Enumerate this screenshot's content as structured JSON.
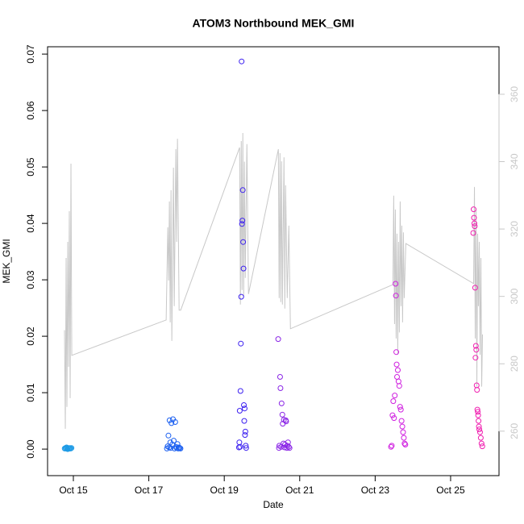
{
  "chart_data": {
    "type": "scatter",
    "title": "ATOM3 Northbound MEK_GMI",
    "x_label": "Date",
    "y_label": "MEK_GMI",
    "xlim": [
      14.316,
      26.283
    ],
    "ylim": [
      -0.0047,
      0.0713
    ],
    "y2lim": [
      246.8,
      374.1
    ],
    "xticks": [
      {
        "value": 15,
        "label": "Oct 15"
      },
      {
        "value": 17,
        "label": "Oct 17"
      },
      {
        "value": 19,
        "label": "Oct 19"
      },
      {
        "value": 21,
        "label": "Oct 21"
      },
      {
        "value": 23,
        "label": "Oct 23"
      },
      {
        "value": 25,
        "label": "Oct 25"
      }
    ],
    "yticks": [
      {
        "value": 0,
        "label": "0.00"
      },
      {
        "value": 0.01,
        "label": "0.01"
      },
      {
        "value": 0.02,
        "label": "0.02"
      },
      {
        "value": 0.03,
        "label": "0.03"
      },
      {
        "value": 0.04,
        "label": "0.04"
      },
      {
        "value": 0.05,
        "label": "0.05"
      },
      {
        "value": 0.06,
        "label": "0.06"
      },
      {
        "value": 0.07,
        "label": "0.07"
      }
    ],
    "y2ticks": [
      260,
      280,
      300,
      320,
      340,
      360
    ],
    "y2_color": "#c8c8c8",
    "grid": false,
    "series": [
      {
        "type": "line",
        "axis": "y2",
        "color": "#c8c8c8",
        "x": [
          14.765,
          14.787,
          14.808,
          14.829,
          14.851,
          14.872,
          14.893,
          14.915,
          14.936,
          14.958,
          17.46,
          17.503,
          17.525,
          17.546,
          17.567,
          17.589,
          17.61,
          17.653,
          17.674,
          17.717,
          17.738,
          17.76,
          17.803,
          17.845,
          19.407,
          19.428,
          19.45,
          19.471,
          19.492,
          19.514,
          19.535,
          19.557,
          19.6,
          19.642,
          20.434,
          20.455,
          20.477,
          20.498,
          20.519,
          20.541,
          20.583,
          20.605,
          20.626,
          20.669,
          20.712,
          20.754,
          23.471,
          23.492,
          23.514,
          23.535,
          23.556,
          23.578,
          23.599,
          23.62,
          23.642,
          23.663,
          23.685,
          23.706,
          23.727,
          23.749,
          23.77,
          23.813,
          25.61,
          25.632,
          25.653,
          25.674,
          25.696,
          25.717,
          25.738,
          25.76,
          25.781,
          25.803,
          25.824,
          25.845
        ],
        "values": [
          290,
          260.7,
          311.4,
          267.2,
          316.2,
          279.1,
          325.3,
          269.8,
          339.4,
          282.5,
          293,
          320.5,
          304.7,
          328.2,
          292.3,
          331.5,
          286.8,
          338.2,
          297.1,
          343.7,
          316.2,
          346.8,
          295.9,
          295.9,
          344.2,
          297.6,
          346.1,
          301.9,
          348.5,
          300,
          340,
          305.5,
          345.2,
          300.7,
          343.7,
          299.5,
          342.5,
          298.3,
          340.1,
          297.6,
          341.3,
          296.4,
          333,
          299.5,
          321,
          290.4,
          303.5,
          329.9,
          291.8,
          325.8,
          287.5,
          318.6,
          282.7,
          316.2,
          289.3,
          328.2,
          297.1,
          321,
          292.3,
          319,
          299.5,
          315.7,
          303.8,
          332.5,
          287.5,
          325.8,
          273.2,
          318.6,
          297.1,
          316.2,
          282.7,
          311.4,
          273.2,
          288.7
        ]
      },
      {
        "color": "#1e9be6",
        "x": [
          14.77,
          14.79,
          14.8,
          14.82,
          14.83,
          14.85,
          14.86,
          14.88,
          14.9,
          14.91,
          14.93,
          14.95
        ],
        "values": [
          0.0001,
          0.0002,
          0.0001,
          0.0003,
          0.0001,
          0,
          0.0002,
          0.0001,
          0.0001,
          0.0002,
          0.0001,
          0.0002
        ]
      },
      {
        "color": "#1b5ff0",
        "x": [
          17.48,
          17.5,
          17.52,
          17.54,
          17.55,
          17.57,
          17.58,
          17.6,
          17.62,
          17.64,
          17.66,
          17.68,
          17.7,
          17.72,
          17.74,
          17.76,
          17.78,
          17.8,
          17.82,
          17.84
        ],
        "values": [
          0.0001,
          0.0005,
          0.0024,
          0.0003,
          0.0051,
          0.0012,
          0.0002,
          0.0046,
          0.0008,
          0.0053,
          0.0015,
          0.0001,
          0.0048,
          0.0004,
          0.0002,
          0.0009,
          0.0001,
          0.0003,
          0.0002,
          0.0001
        ]
      },
      {
        "color": "#3c20f0",
        "x": [
          19.39,
          19.4,
          19.41,
          19.42,
          19.43,
          19.44,
          19.45,
          19.46,
          19.47,
          19.48,
          19.49,
          19.5,
          19.51,
          19.52,
          19.53,
          19.54,
          19.55,
          19.56,
          19.57,
          19.58
        ],
        "values": [
          0.0003,
          0.0012,
          0.0068,
          0.0004,
          0.0103,
          0.0187,
          0.027,
          0.0687,
          0.0399,
          0.0405,
          0.0459,
          0.0367,
          0.032,
          0.0078,
          0.005,
          0.0072,
          0.0025,
          0.0031,
          0.0006,
          0.0002
        ]
      },
      {
        "color": "#8a25e6",
        "x": [
          20.43,
          20.45,
          20.46,
          20.48,
          20.49,
          20.51,
          20.52,
          20.54,
          20.55,
          20.57,
          20.58,
          20.6,
          20.61,
          20.63,
          20.64,
          20.66,
          20.67,
          20.69,
          20.71,
          20.73
        ],
        "values": [
          0.0195,
          0.0002,
          0.0006,
          0.0128,
          0.0108,
          0.0004,
          0.0081,
          0.0061,
          0.0045,
          0.001,
          0.0052,
          0.0003,
          0.0008,
          0.0051,
          0.0049,
          0.0002,
          0.0006,
          0.0012,
          0.0004,
          0.0002
        ]
      },
      {
        "color": "#d020e0",
        "x": [
          23.42,
          23.44,
          23.46,
          23.48,
          23.5,
          23.52,
          23.54,
          23.55,
          23.56,
          23.57,
          23.58,
          23.6,
          23.62,
          23.64,
          23.66,
          23.68,
          23.7,
          23.72,
          23.74,
          23.76,
          23.78,
          23.8
        ],
        "values": [
          0.0004,
          0.0006,
          0.006,
          0.0085,
          0.0055,
          0.0095,
          0.0293,
          0.0272,
          0.0172,
          0.015,
          0.0128,
          0.014,
          0.012,
          0.0112,
          0.0075,
          0.007,
          0.005,
          0.004,
          0.003,
          0.002,
          0.001,
          0.0008
        ]
      },
      {
        "color": "#f020b0",
        "x": [
          25.6,
          25.61,
          25.62,
          25.63,
          25.64,
          25.65,
          25.66,
          25.67,
          25.68,
          25.69,
          25.7,
          25.71,
          25.72,
          25.73,
          25.74,
          25.75,
          25.76,
          25.78,
          25.8,
          25.82,
          25.84
        ],
        "values": [
          0.0383,
          0.0425,
          0.041,
          0.04,
          0.0395,
          0.0286,
          0.0162,
          0.0183,
          0.0176,
          0.0113,
          0.0105,
          0.007,
          0.0066,
          0.006,
          0.005,
          0.004,
          0.0035,
          0.003,
          0.002,
          0.001,
          0.0005
        ]
      }
    ]
  }
}
